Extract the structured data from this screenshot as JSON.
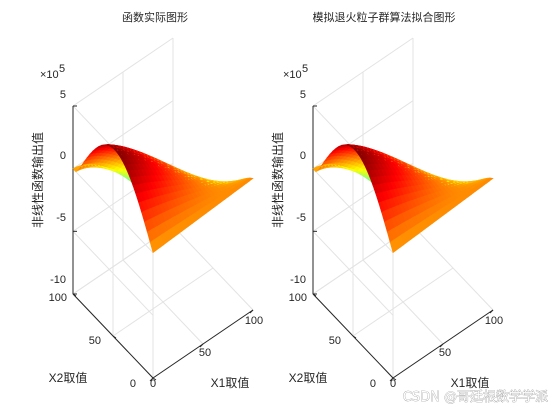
{
  "chart_data": [
    {
      "type": "surface",
      "title": "函数实际图形",
      "xlabel": "X1取值",
      "ylabel": "X2取值",
      "zlabel": "非线性函数输出值",
      "xticks": [
        "0",
        "50",
        "100"
      ],
      "yticks": [
        "0",
        "50",
        "100"
      ],
      "zticks": [
        "5",
        "0",
        "-5",
        "-10"
      ],
      "z_multiplier": "×10",
      "z_exponent": "5",
      "xlim": [
        0,
        100
      ],
      "ylim": [
        0,
        100
      ],
      "zlim": [
        -1000000,
        500000
      ],
      "grid": true,
      "colormap": "jet",
      "surface_values": {
        "x": [
          0,
          50,
          100
        ],
        "y": [
          0,
          50,
          100
        ],
        "z_at_x0_y0": 0,
        "z_max": 500000,
        "z_min": -1000000
      }
    },
    {
      "type": "surface",
      "title": "模拟退火粒子群算法拟合图形",
      "xlabel": "X1取值",
      "ylabel": "X2取值",
      "zlabel": "非线性函数输出值",
      "xticks": [
        "0",
        "50",
        "100"
      ],
      "yticks": [
        "0",
        "50",
        "100"
      ],
      "zticks": [
        "5",
        "0",
        "-5",
        "-10"
      ],
      "z_multiplier": "×10",
      "z_exponent": "5",
      "xlim": [
        0,
        100
      ],
      "ylim": [
        0,
        100
      ],
      "zlim": [
        -1000000,
        500000
      ],
      "grid": true,
      "colormap": "jet",
      "surface_values": {
        "x": [
          0,
          50,
          100
        ],
        "y": [
          0,
          50,
          100
        ],
        "z_at_x0_y0": 0,
        "z_max": 500000,
        "z_min": -1000000
      }
    }
  ],
  "watermark": "CSDN @哥廷根数学学派"
}
